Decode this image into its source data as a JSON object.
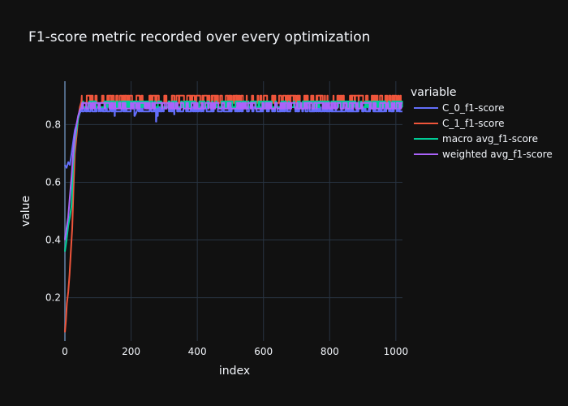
{
  "chart_data": {
    "type": "line",
    "title": "F1-score metric recorded over every optimization",
    "xlabel": "index",
    "ylabel": "value",
    "xlim": [
      0,
      1020
    ],
    "ylim": [
      0.05,
      0.95
    ],
    "x_ticks": [
      0,
      200,
      400,
      600,
      800,
      1000
    ],
    "y_ticks": [
      0.2,
      0.4,
      0.6,
      0.8
    ],
    "grid": true,
    "legend_title": "variable",
    "legend_position": "right",
    "x_count": 1020,
    "series": [
      {
        "name": "C_0_f1-score",
        "color": "#636efa",
        "start": [
          [
            0,
            0.66
          ],
          [
            5,
            0.65
          ],
          [
            10,
            0.67
          ],
          [
            15,
            0.66
          ],
          [
            20,
            0.7
          ],
          [
            25,
            0.74
          ],
          [
            30,
            0.78
          ],
          [
            35,
            0.8
          ],
          [
            40,
            0.82
          ],
          [
            45,
            0.84
          ],
          [
            50,
            0.85
          ]
        ],
        "plateau": {
          "start": 50,
          "end": 1020,
          "values": [
            0.845,
            0.86
          ],
          "dips": [
            [
              150,
              0.83
            ],
            [
              210,
              0.83
            ],
            [
              275,
              0.81
            ],
            [
              280,
              0.83
            ],
            [
              330,
              0.835
            ]
          ]
        }
      },
      {
        "name": "C_1_f1-score",
        "color": "#EF553B",
        "start": [
          [
            0,
            0.08
          ],
          [
            3,
            0.12
          ],
          [
            6,
            0.18
          ],
          [
            10,
            0.22
          ],
          [
            14,
            0.28
          ],
          [
            18,
            0.36
          ],
          [
            22,
            0.44
          ],
          [
            26,
            0.58
          ],
          [
            30,
            0.7
          ],
          [
            35,
            0.76
          ],
          [
            40,
            0.82
          ],
          [
            45,
            0.86
          ],
          [
            50,
            0.88
          ]
        ],
        "plateau": {
          "start": 50,
          "end": 1020,
          "values": [
            0.875,
            0.9
          ],
          "dips": []
        }
      },
      {
        "name": "macro avg_f1-score",
        "color": "#00cc96",
        "start": [
          [
            0,
            0.36
          ],
          [
            5,
            0.4
          ],
          [
            10,
            0.45
          ],
          [
            15,
            0.48
          ],
          [
            20,
            0.52
          ],
          [
            25,
            0.66
          ],
          [
            30,
            0.74
          ],
          [
            35,
            0.78
          ],
          [
            40,
            0.82
          ],
          [
            45,
            0.85
          ],
          [
            50,
            0.86
          ]
        ],
        "plateau": {
          "start": 50,
          "end": 1020,
          "values": [
            0.86,
            0.88
          ],
          "dips": []
        }
      },
      {
        "name": "weighted avg_f1-score",
        "color": "#ab63fa",
        "start": [
          [
            0,
            0.4
          ],
          [
            5,
            0.44
          ],
          [
            10,
            0.48
          ],
          [
            15,
            0.55
          ],
          [
            20,
            0.62
          ],
          [
            25,
            0.7
          ],
          [
            30,
            0.76
          ],
          [
            35,
            0.8
          ],
          [
            40,
            0.83
          ],
          [
            45,
            0.85
          ],
          [
            50,
            0.86
          ]
        ],
        "plateau": {
          "start": 50,
          "end": 1020,
          "values": [
            0.855,
            0.875
          ],
          "dips": []
        }
      }
    ]
  }
}
